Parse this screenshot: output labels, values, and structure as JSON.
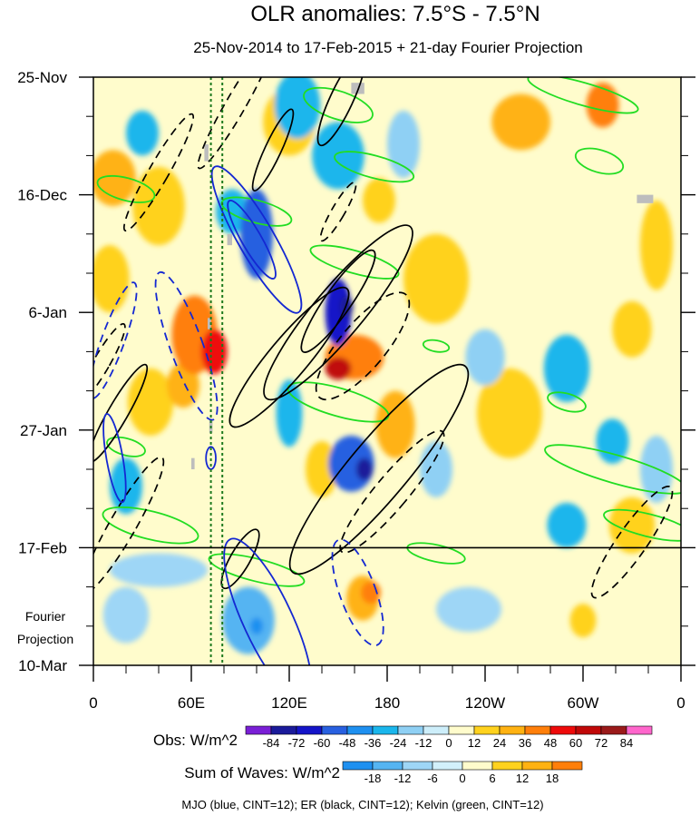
{
  "chart_data": {
    "type": "heatmap",
    "title": "OLR anomalies: 7.5°S - 7.5°N",
    "subtitle": "25-Nov-2014 to 17-Feb-2015 + 21-day Fourier Projection",
    "x_ticks": [
      {
        "lon": 0,
        "label": "0"
      },
      {
        "lon": 60,
        "label": "60E"
      },
      {
        "lon": 120,
        "label": "120E"
      },
      {
        "lon": 180,
        "label": "180"
      },
      {
        "lon": 240,
        "label": "120W"
      },
      {
        "lon": 300,
        "label": "60W"
      },
      {
        "lon": 360,
        "label": "0"
      }
    ],
    "y_ticks": [
      {
        "day": 0,
        "label": "25-Nov"
      },
      {
        "day": 21,
        "label": "16-Dec"
      },
      {
        "day": 42,
        "label": "6-Jan"
      },
      {
        "day": 63,
        "label": "27-Jan"
      },
      {
        "day": 84,
        "label": "17-Feb"
      },
      {
        "day": 105,
        "label": "10-Mar"
      }
    ],
    "xlim": [
      0,
      360
    ],
    "ylim": [
      0,
      105
    ],
    "projection_start_day": 84,
    "projection_label_lines": [
      "Fourier",
      "Projection"
    ],
    "reference_lines_lon": [
      72,
      79
    ],
    "obs_legend": {
      "label": "Obs: W/m^2",
      "levels": [
        "-84",
        "-72",
        "-60",
        "-48",
        "-36",
        "-24",
        "-12",
        "0",
        "12",
        "24",
        "36",
        "48",
        "60",
        "72",
        "84"
      ],
      "colors": [
        "#7a1fd6",
        "#1a1a9a",
        "#1414c8",
        "#2860e0",
        "#1e90f0",
        "#1ab6ec",
        "#8fd0f4",
        "#cdeefa",
        "#fffccc",
        "#ffd21e",
        "#ffb212",
        "#ff7f0a",
        "#ee0a0a",
        "#c00808",
        "#9a1a1a",
        "#ff66cc"
      ]
    },
    "waves_legend": {
      "label": "Sum of Waves: W/m^2",
      "levels": [
        "-18",
        "-12",
        "-6",
        "0",
        "6",
        "12",
        "18"
      ],
      "colors": [
        "#1e90f0",
        "#55b4f2",
        "#9ed6f6",
        "#d2f0fb",
        "#fffccc",
        "#ffd21e",
        "#ffb212",
        "#ff7f0a"
      ]
    },
    "contour_note": "MJO (blue, CINT=12); ER (black, CINT=12); Kelvin (green, CINT=12)",
    "wave_colors": {
      "MJO": "#1428d2",
      "ER": "#000000",
      "Kelvin": "#22dd22"
    },
    "anomaly_features": [
      {
        "lon": 12,
        "day": 18,
        "rx": 14,
        "ry": 5,
        "value": 30
      },
      {
        "lon": 40,
        "day": 23,
        "rx": 16,
        "ry": 7,
        "value": 24
      },
      {
        "lon": 10,
        "day": 36,
        "rx": 12,
        "ry": 6,
        "value": 20
      },
      {
        "lon": 35,
        "day": 58,
        "rx": 14,
        "ry": 6,
        "value": 24
      },
      {
        "lon": 62,
        "day": 46,
        "rx": 14,
        "ry": 7,
        "value": 44
      },
      {
        "lon": 74,
        "day": 49,
        "rx": 8,
        "ry": 4,
        "value": 56
      },
      {
        "lon": 55,
        "day": 55,
        "rx": 10,
        "ry": 4,
        "value": 36
      },
      {
        "lon": 160,
        "day": 50,
        "rx": 18,
        "ry": 4,
        "value": 40
      },
      {
        "lon": 150,
        "day": 52,
        "rx": 8,
        "ry": 2,
        "value": 62
      },
      {
        "lon": 140,
        "day": 70,
        "rx": 10,
        "ry": 5,
        "value": 24
      },
      {
        "lon": 185,
        "day": 62,
        "rx": 12,
        "ry": 6,
        "value": 26
      },
      {
        "lon": 210,
        "day": 36,
        "rx": 20,
        "ry": 8,
        "value": 22
      },
      {
        "lon": 255,
        "day": 60,
        "rx": 20,
        "ry": 8,
        "value": 14
      },
      {
        "lon": 262,
        "day": 8,
        "rx": 18,
        "ry": 5,
        "value": 26
      },
      {
        "lon": 312,
        "day": 5,
        "rx": 10,
        "ry": 4,
        "value": 40
      },
      {
        "lon": 330,
        "day": 45,
        "rx": 12,
        "ry": 5,
        "value": 24
      },
      {
        "lon": 345,
        "day": 30,
        "rx": 10,
        "ry": 8,
        "value": 20
      },
      {
        "lon": 330,
        "day": 80,
        "rx": 14,
        "ry": 5,
        "value": 24
      },
      {
        "lon": 175,
        "day": 22,
        "rx": 10,
        "ry": 4,
        "value": 24
      },
      {
        "lon": 120,
        "day": 8,
        "rx": 16,
        "ry": 6,
        "value": 20
      },
      {
        "lon": 100,
        "day": 28,
        "rx": 10,
        "ry": 8,
        "value": -50
      },
      {
        "lon": 85,
        "day": 24,
        "rx": 10,
        "ry": 4,
        "value": -30
      },
      {
        "lon": 150,
        "day": 42,
        "rx": 8,
        "ry": 6,
        "value": -62
      },
      {
        "lon": 155,
        "day": 41,
        "rx": 4,
        "ry": 2,
        "value": -80
      },
      {
        "lon": 158,
        "day": 69,
        "rx": 14,
        "ry": 5,
        "value": -52
      },
      {
        "lon": 166,
        "day": 70,
        "rx": 5,
        "ry": 2,
        "value": -74
      },
      {
        "lon": 150,
        "day": 14,
        "rx": 16,
        "ry": 6,
        "value": -30
      },
      {
        "lon": 125,
        "day": 5,
        "rx": 14,
        "ry": 6,
        "value": -34
      },
      {
        "lon": 30,
        "day": 10,
        "rx": 10,
        "ry": 4,
        "value": -28
      },
      {
        "lon": 120,
        "day": 60,
        "rx": 8,
        "ry": 6,
        "value": -26
      },
      {
        "lon": 240,
        "day": 50,
        "rx": 12,
        "ry": 5,
        "value": -20
      },
      {
        "lon": 290,
        "day": 52,
        "rx": 14,
        "ry": 6,
        "value": -30
      },
      {
        "lon": 290,
        "day": 80,
        "rx": 12,
        "ry": 4,
        "value": -32
      },
      {
        "lon": 345,
        "day": 70,
        "rx": 10,
        "ry": 6,
        "value": -20
      },
      {
        "lon": 318,
        "day": 65,
        "rx": 10,
        "ry": 4,
        "value": -30
      },
      {
        "lon": 20,
        "day": 73,
        "rx": 10,
        "ry": 5,
        "value": -26
      },
      {
        "lon": 210,
        "day": 70,
        "rx": 10,
        "ry": 5,
        "value": -22
      },
      {
        "lon": 190,
        "day": 12,
        "rx": 10,
        "ry": 6,
        "value": -18
      }
    ],
    "projection_features": [
      {
        "lon": 40,
        "day": 88,
        "rx": 30,
        "ry": 3,
        "value": -8
      },
      {
        "lon": 95,
        "day": 97,
        "rx": 16,
        "ry": 6,
        "value": -14
      },
      {
        "lon": 100,
        "day": 98,
        "rx": 4,
        "ry": 1.5,
        "value": -20
      },
      {
        "lon": 165,
        "day": 93,
        "rx": 10,
        "ry": 4,
        "value": 14
      },
      {
        "lon": 170,
        "day": 92,
        "rx": 6,
        "ry": 2,
        "value": 20
      },
      {
        "lon": 300,
        "day": 97,
        "rx": 8,
        "ry": 3,
        "value": 10
      },
      {
        "lon": 20,
        "day": 96,
        "rx": 14,
        "ry": 5,
        "value": -6
      },
      {
        "lon": 230,
        "day": 95,
        "rx": 20,
        "ry": 4,
        "value": -6
      }
    ],
    "mjo_contours": [
      {
        "lon": 100,
        "day": 29,
        "rx": 11,
        "ry": 15,
        "angle": -30,
        "dashed": false
      },
      {
        "lon": 97,
        "day": 29,
        "rx": 6,
        "ry": 8,
        "angle": -30,
        "dashed": false
      },
      {
        "lon": 57,
        "day": 48,
        "rx": 10,
        "ry": 14,
        "angle": -20,
        "dashed": true
      },
      {
        "lon": 12,
        "day": 47,
        "rx": 7,
        "ry": 11,
        "angle": 20,
        "dashed": true
      },
      {
        "lon": 13,
        "day": 68,
        "rx": 5,
        "ry": 8,
        "angle": -10,
        "dashed": false
      },
      {
        "lon": 72,
        "day": 68,
        "rx": 3,
        "ry": 2,
        "angle": 0,
        "dashed": false
      },
      {
        "lon": 107,
        "day": 97,
        "rx": 15,
        "ry": 16,
        "angle": -25,
        "dashed": false
      },
      {
        "lon": 162,
        "day": 92,
        "rx": 11,
        "ry": 10,
        "angle": -20,
        "dashed": true
      }
    ],
    "er_contours": [
      {
        "lon": 87,
        "day": 5,
        "rx": 6,
        "ry": 13,
        "angle": 30,
        "dashed": true
      },
      {
        "lon": 152,
        "day": 4,
        "rx": 7,
        "ry": 9,
        "angle": 25,
        "dashed": false
      },
      {
        "lon": 40,
        "day": 17,
        "rx": 6,
        "ry": 12,
        "angle": 30,
        "dashed": true
      },
      {
        "lon": 110,
        "day": 13,
        "rx": 5,
        "ry": 8,
        "angle": 25,
        "dashed": false
      },
      {
        "lon": 150,
        "day": 42,
        "rx": 15,
        "ry": 20,
        "angle": 40,
        "dashed": false
      },
      {
        "lon": 150,
        "day": 40,
        "rx": 8,
        "ry": 11,
        "angle": 35,
        "dashed": false
      },
      {
        "lon": 165,
        "day": 48,
        "rx": 14,
        "ry": 12,
        "angle": 40,
        "dashed": true
      },
      {
        "lon": 175,
        "day": 70,
        "rx": 18,
        "ry": 24,
        "angle": 40,
        "dashed": false
      },
      {
        "lon": 183,
        "day": 74,
        "rx": 10,
        "ry": 14,
        "angle": 40,
        "dashed": true
      },
      {
        "lon": 18,
        "day": 80,
        "rx": 8,
        "ry": 14,
        "angle": 30,
        "dashed": true
      },
      {
        "lon": 15,
        "day": 60,
        "rx": 6,
        "ry": 10,
        "angle": 30,
        "dashed": false
      },
      {
        "lon": 5,
        "day": 51,
        "rx": 5,
        "ry": 8,
        "angle": 30,
        "dashed": true
      },
      {
        "lon": 120,
        "day": 50,
        "rx": 12,
        "ry": 16,
        "angle": 40,
        "dashed": false
      },
      {
        "lon": 330,
        "day": 83,
        "rx": 9,
        "ry": 12,
        "angle": 35,
        "dashed": true
      },
      {
        "lon": 90,
        "day": 86,
        "rx": 6,
        "ry": 6,
        "angle": 30,
        "dashed": false
      },
      {
        "lon": 150,
        "day": 24,
        "rx": 4,
        "ry": 6,
        "angle": 30,
        "dashed": true
      }
    ],
    "kelvin_contours": [
      {
        "lon": 150,
        "day": 5,
        "rx": 22,
        "ry": 2.5,
        "angle": 18
      },
      {
        "lon": 300,
        "day": 3,
        "rx": 35,
        "ry": 2,
        "angle": 16
      },
      {
        "lon": 172,
        "day": 16,
        "rx": 25,
        "ry": 2,
        "angle": 15
      },
      {
        "lon": 310,
        "day": 15,
        "rx": 15,
        "ry": 2,
        "angle": 16
      },
      {
        "lon": 20,
        "day": 20,
        "rx": 18,
        "ry": 2,
        "angle": 15
      },
      {
        "lon": 100,
        "day": 24,
        "rx": 22,
        "ry": 2,
        "angle": 15
      },
      {
        "lon": 160,
        "day": 33,
        "rx": 28,
        "ry": 2,
        "angle": 16
      },
      {
        "lon": 210,
        "day": 48,
        "rx": 8,
        "ry": 1,
        "angle": 10
      },
      {
        "lon": 150,
        "day": 58,
        "rx": 32,
        "ry": 2.5,
        "angle": 16
      },
      {
        "lon": 290,
        "day": 58,
        "rx": 12,
        "ry": 1.5,
        "angle": 16
      },
      {
        "lon": 320,
        "day": 70,
        "rx": 45,
        "ry": 2.5,
        "angle": 16
      },
      {
        "lon": 20,
        "day": 66,
        "rx": 12,
        "ry": 1.5,
        "angle": 15
      },
      {
        "lon": 35,
        "day": 80,
        "rx": 30,
        "ry": 2.5,
        "angle": 14
      },
      {
        "lon": 210,
        "day": 85,
        "rx": 18,
        "ry": 1.5,
        "angle": 12
      },
      {
        "lon": 340,
        "day": 80,
        "rx": 28,
        "ry": 2,
        "angle": 14
      },
      {
        "lon": 100,
        "day": 88,
        "rx": 30,
        "ry": 2,
        "angle": 14
      }
    ],
    "missing_cells": [
      {
        "lon": 158,
        "day": 1,
        "w": 8,
        "h": 2
      },
      {
        "lon": 333,
        "day": 21,
        "w": 10,
        "h": 1.5
      },
      {
        "lon": 68,
        "day": 12,
        "w": 2.5,
        "h": 3
      },
      {
        "lon": 70,
        "day": 43,
        "w": 2,
        "h": 2
      },
      {
        "lon": 71,
        "day": 61,
        "w": 2,
        "h": 2.5
      },
      {
        "lon": 82,
        "day": 28,
        "w": 3,
        "h": 2
      },
      {
        "lon": 60,
        "day": 68,
        "w": 2,
        "h": 2
      }
    ]
  }
}
